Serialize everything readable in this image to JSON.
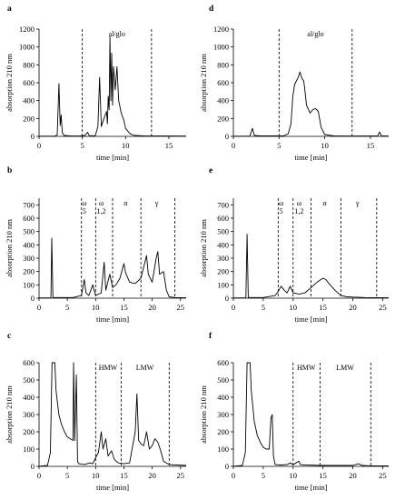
{
  "chart_data": [
    {
      "type": "line",
      "panel_label": "a",
      "ylabel": "absorption 210 nm",
      "xlabel": "time [min]",
      "xlim": [
        0,
        17
      ],
      "ylim": [
        0,
        1200
      ],
      "xticks": [
        "0",
        "5",
        "10",
        "15"
      ],
      "yticks": [
        "0",
        "200",
        "400",
        "600",
        "800",
        "1000",
        "1200"
      ],
      "region_lines": [
        5,
        13
      ],
      "region_labels": [
        {
          "text": "al/glo",
          "x": 9
        }
      ],
      "series": [
        {
          "points": [
            [
              0,
              2
            ],
            [
              1.8,
              2
            ],
            [
              2.1,
              15
            ],
            [
              2.3,
              590
            ],
            [
              2.45,
              120
            ],
            [
              2.55,
              240
            ],
            [
              2.7,
              40
            ],
            [
              2.9,
              10
            ],
            [
              3.5,
              5
            ],
            [
              4.5,
              3
            ],
            [
              5.3,
              10
            ],
            [
              5.6,
              45
            ],
            [
              5.8,
              8
            ],
            [
              6.5,
              6
            ],
            [
              6.8,
              110
            ],
            [
              7,
              660
            ],
            [
              7.2,
              110
            ],
            [
              7.5,
              200
            ],
            [
              7.8,
              280
            ],
            [
              7.9,
              140
            ],
            [
              8,
              450
            ],
            [
              8.1,
              300
            ],
            [
              8.2,
              1120
            ],
            [
              8.3,
              400
            ],
            [
              8.4,
              930
            ],
            [
              8.5,
              350
            ],
            [
              8.6,
              780
            ],
            [
              8.8,
              520
            ],
            [
              9,
              780
            ],
            [
              9.2,
              400
            ],
            [
              9.5,
              260
            ],
            [
              9.8,
              180
            ],
            [
              10,
              90
            ],
            [
              10.5,
              30
            ],
            [
              11,
              10
            ],
            [
              12,
              5
            ],
            [
              17,
              3
            ]
          ]
        }
      ]
    },
    {
      "type": "line",
      "panel_label": "b",
      "ylabel": "absorption 210 nm",
      "xlabel": "time [min]",
      "xlim": [
        0,
        26
      ],
      "ylim": [
        0,
        750
      ],
      "xticks": [
        "0",
        "5",
        "10",
        "15",
        "20",
        "25"
      ],
      "yticks": [
        "0",
        "100",
        "200",
        "300",
        "400",
        "500",
        "600",
        "700"
      ],
      "region_lines": [
        7.5,
        10,
        13,
        18,
        24
      ],
      "region_labels": [
        {
          "text": "ω",
          "x": 8,
          "dy": 0
        },
        {
          "text": "5",
          "x": 8,
          "dy": 1
        },
        {
          "text": "ω",
          "x": 11,
          "dy": 0
        },
        {
          "text": "1,2",
          "x": 11,
          "dy": 1
        },
        {
          "text": "α",
          "x": 15.3,
          "dy": 0
        },
        {
          "text": "γ",
          "x": 20.8,
          "dy": 0
        }
      ],
      "series": [
        {
          "points": [
            [
              0,
              2
            ],
            [
              2.1,
              2
            ],
            [
              2.25,
              450
            ],
            [
              2.45,
              5
            ],
            [
              6,
              5
            ],
            [
              7.5,
              20
            ],
            [
              8,
              140
            ],
            [
              8.3,
              40
            ],
            [
              8.8,
              20
            ],
            [
              9.5,
              100
            ],
            [
              10,
              20
            ],
            [
              11,
              40
            ],
            [
              11.5,
              270
            ],
            [
              11.8,
              60
            ],
            [
              12.5,
              180
            ],
            [
              13,
              80
            ],
            [
              13.6,
              100
            ],
            [
              14.3,
              150
            ],
            [
              15,
              260
            ],
            [
              15.3,
              190
            ],
            [
              16,
              120
            ],
            [
              17,
              110
            ],
            [
              18,
              150
            ],
            [
              19,
              320
            ],
            [
              19.3,
              180
            ],
            [
              20,
              120
            ],
            [
              20.7,
              300
            ],
            [
              21,
              350
            ],
            [
              21.3,
              180
            ],
            [
              22,
              200
            ],
            [
              22.5,
              60
            ],
            [
              23,
              10
            ],
            [
              24,
              5
            ],
            [
              26,
              3
            ]
          ]
        }
      ]
    },
    {
      "type": "line",
      "panel_label": "c",
      "ylabel": "absorption 210 nm",
      "xlabel": "time [min]",
      "xlim": [
        0,
        26
      ],
      "ylim": [
        0,
        600
      ],
      "xticks": [
        "0",
        "5",
        "10",
        "15",
        "20",
        "25"
      ],
      "yticks": [
        "0",
        "100",
        "200",
        "300",
        "400",
        "500",
        "600"
      ],
      "region_lines": [
        10,
        14.5,
        23
      ],
      "region_labels": [
        {
          "text": "HMW",
          "x": 12.2
        },
        {
          "text": "LMW",
          "x": 18.7
        }
      ],
      "series": [
        {
          "points": [
            [
              0,
              0
            ],
            [
              1.5,
              5
            ],
            [
              2,
              80
            ],
            [
              2.3,
              600
            ],
            [
              2.8,
              600
            ],
            [
              3,
              440
            ],
            [
              3.5,
              300
            ],
            [
              4,
              240
            ],
            [
              4.5,
              200
            ],
            [
              5,
              170
            ],
            [
              5.5,
              160
            ],
            [
              6,
              150
            ],
            [
              6.1,
              600
            ],
            [
              6.3,
              150
            ],
            [
              6.6,
              530
            ],
            [
              6.8,
              30
            ],
            [
              7,
              15
            ],
            [
              8,
              10
            ],
            [
              9,
              20
            ],
            [
              9.5,
              15
            ],
            [
              10,
              50
            ],
            [
              10.5,
              80
            ],
            [
              11,
              200
            ],
            [
              11.3,
              100
            ],
            [
              11.8,
              160
            ],
            [
              12.2,
              60
            ],
            [
              12.8,
              90
            ],
            [
              13.3,
              40
            ],
            [
              14,
              20
            ],
            [
              15,
              15
            ],
            [
              16,
              20
            ],
            [
              17,
              200
            ],
            [
              17.3,
              420
            ],
            [
              17.6,
              150
            ],
            [
              18,
              130
            ],
            [
              18.5,
              120
            ],
            [
              19,
              200
            ],
            [
              19.5,
              100
            ],
            [
              20,
              120
            ],
            [
              20.5,
              160
            ],
            [
              21,
              140
            ],
            [
              21.5,
              90
            ],
            [
              22,
              30
            ],
            [
              23,
              10
            ],
            [
              26,
              5
            ]
          ]
        }
      ]
    },
    {
      "type": "line",
      "panel_label": "d",
      "ylabel": "absorption 210 nm",
      "xlabel": "time [min]",
      "xlim": [
        0,
        17
      ],
      "ylim": [
        0,
        1200
      ],
      "xticks": [
        "0",
        "5",
        "10",
        "15"
      ],
      "yticks": [
        "0",
        "200",
        "400",
        "600",
        "800",
        "1000",
        "1200"
      ],
      "region_lines": [
        5,
        13
      ],
      "region_labels": [
        {
          "text": "al/glo",
          "x": 9
        }
      ],
      "series": [
        {
          "points": [
            [
              0,
              2
            ],
            [
              1.8,
              3
            ],
            [
              2.1,
              90
            ],
            [
              2.3,
              10
            ],
            [
              3,
              5
            ],
            [
              5.5,
              5
            ],
            [
              6,
              30
            ],
            [
              6.3,
              140
            ],
            [
              6.5,
              440
            ],
            [
              6.7,
              580
            ],
            [
              6.9,
              620
            ],
            [
              7.1,
              660
            ],
            [
              7.3,
              720
            ],
            [
              7.5,
              650
            ],
            [
              7.7,
              620
            ],
            [
              7.8,
              540
            ],
            [
              8,
              350
            ],
            [
              8.4,
              260
            ],
            [
              8.7,
              300
            ],
            [
              9,
              310
            ],
            [
              9.3,
              280
            ],
            [
              9.6,
              100
            ],
            [
              10,
              20
            ],
            [
              11,
              5
            ],
            [
              13,
              3
            ],
            [
              15.8,
              5
            ],
            [
              16,
              50
            ],
            [
              16.2,
              5
            ],
            [
              17,
              3
            ]
          ]
        }
      ]
    },
    {
      "type": "line",
      "panel_label": "e",
      "ylabel": "absorption 210 nm",
      "xlabel": "time [min]",
      "xlim": [
        0,
        26
      ],
      "ylim": [
        0,
        750
      ],
      "xticks": [
        "0",
        "5",
        "10",
        "15",
        "20",
        "25"
      ],
      "yticks": [
        "0",
        "100",
        "200",
        "300",
        "400",
        "500",
        "600",
        "700"
      ],
      "region_lines": [
        7.5,
        10,
        13,
        18,
        24
      ],
      "region_labels": [
        {
          "text": "ω",
          "x": 8,
          "dy": 0
        },
        {
          "text": "5",
          "x": 8,
          "dy": 1
        },
        {
          "text": "ω",
          "x": 11,
          "dy": 0
        },
        {
          "text": "1,2",
          "x": 11,
          "dy": 1
        },
        {
          "text": "α",
          "x": 15.3,
          "dy": 0
        },
        {
          "text": "γ",
          "x": 20.8,
          "dy": 0
        }
      ],
      "series": [
        {
          "points": [
            [
              0,
              2
            ],
            [
              2.1,
              3
            ],
            [
              2.3,
              480
            ],
            [
              2.5,
              5
            ],
            [
              5,
              5
            ],
            [
              7,
              20
            ],
            [
              7.5,
              50
            ],
            [
              8,
              90
            ],
            [
              8.5,
              60
            ],
            [
              9,
              40
            ],
            [
              9.5,
              90
            ],
            [
              10,
              40
            ],
            [
              11,
              30
            ],
            [
              12,
              40
            ],
            [
              13,
              80
            ],
            [
              14,
              120
            ],
            [
              15,
              150
            ],
            [
              15.5,
              140
            ],
            [
              16,
              110
            ],
            [
              17,
              60
            ],
            [
              18,
              20
            ],
            [
              19,
              10
            ],
            [
              20,
              8
            ],
            [
              22,
              5
            ],
            [
              26,
              3
            ]
          ]
        }
      ]
    },
    {
      "type": "line",
      "panel_label": "f",
      "ylabel": "absorption 210 nm",
      "xlabel": "time [min]",
      "xlim": [
        0,
        26
      ],
      "ylim": [
        0,
        600
      ],
      "xticks": [
        "0",
        "5",
        "10",
        "15",
        "20",
        "25"
      ],
      "yticks": [
        "0",
        "100",
        "200",
        "300",
        "400",
        "500",
        "600"
      ],
      "region_lines": [
        10,
        14.5,
        23
      ],
      "region_labels": [
        {
          "text": "HMW",
          "x": 12.2
        },
        {
          "text": "LMW",
          "x": 18.7
        }
      ],
      "series": [
        {
          "points": [
            [
              0,
              0
            ],
            [
              1.5,
              5
            ],
            [
              2,
              80
            ],
            [
              2.3,
              600
            ],
            [
              2.8,
              600
            ],
            [
              3,
              440
            ],
            [
              3.5,
              260
            ],
            [
              4,
              180
            ],
            [
              4.5,
              140
            ],
            [
              5,
              110
            ],
            [
              5.5,
              100
            ],
            [
              6,
              100
            ],
            [
              6.3,
              280
            ],
            [
              6.5,
              300
            ],
            [
              6.7,
              60
            ],
            [
              7,
              10
            ],
            [
              8,
              8
            ],
            [
              9,
              10
            ],
            [
              9.5,
              20
            ],
            [
              10,
              10
            ],
            [
              10.5,
              20
            ],
            [
              11,
              30
            ],
            [
              11.2,
              10
            ],
            [
              12,
              8
            ],
            [
              15,
              5
            ],
            [
              20,
              5
            ],
            [
              21,
              15
            ],
            [
              21.5,
              5
            ],
            [
              23,
              3
            ],
            [
              26,
              3
            ]
          ]
        }
      ]
    }
  ]
}
